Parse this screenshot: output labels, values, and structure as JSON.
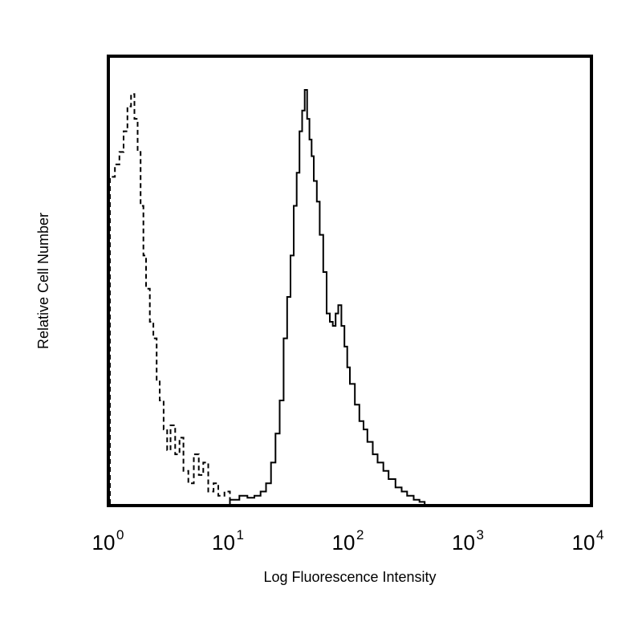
{
  "chart_data": {
    "type": "histogram",
    "title": "",
    "xlabel": "Log Fluorescence Intensity",
    "ylabel": "Relative Cell Number",
    "xscale": "log",
    "xlim": [
      1,
      10000
    ],
    "ylim": [
      0,
      1
    ],
    "grid": false,
    "legend": "none",
    "x_tick_labels": [
      {
        "base": "10",
        "exp": "0",
        "value": 1
      },
      {
        "base": "10",
        "exp": "1",
        "value": 10
      },
      {
        "base": "10",
        "exp": "2",
        "value": 100
      },
      {
        "base": "10",
        "exp": "3",
        "value": 1000
      },
      {
        "base": "10",
        "exp": "4",
        "value": 10000
      }
    ],
    "series": [
      {
        "style": "dashed",
        "color": "#000000",
        "x": [
          1.0,
          1.1,
          1.2,
          1.3,
          1.4,
          1.5,
          1.6,
          1.7,
          1.8,
          1.9,
          2.0,
          2.15,
          2.3,
          2.45,
          2.6,
          2.8,
          3.0,
          3.2,
          3.5,
          3.8,
          4.1,
          4.5,
          5.0,
          5.5,
          6.0,
          6.6,
          7.3,
          8.0,
          9.0,
          10.0
        ],
        "y": [
          0.79,
          0.82,
          0.85,
          0.9,
          0.96,
          0.99,
          0.93,
          0.85,
          0.72,
          0.6,
          0.52,
          0.44,
          0.4,
          0.3,
          0.25,
          0.18,
          0.13,
          0.19,
          0.12,
          0.16,
          0.08,
          0.05,
          0.12,
          0.07,
          0.1,
          0.03,
          0.05,
          0.02,
          0.03,
          0.01
        ]
      },
      {
        "style": "solid",
        "color": "#000000",
        "x": [
          10,
          12,
          14,
          16,
          18,
          20,
          22,
          24,
          26,
          28,
          30,
          32,
          34,
          36,
          38,
          40,
          42,
          44,
          46,
          48,
          50,
          53,
          56,
          60,
          64,
          68,
          72,
          76,
          80,
          85,
          90,
          95,
          100,
          110,
          120,
          130,
          140,
          155,
          170,
          190,
          210,
          240,
          270,
          300,
          340,
          380,
          420
        ],
        "y": [
          0.01,
          0.02,
          0.015,
          0.02,
          0.03,
          0.05,
          0.1,
          0.17,
          0.25,
          0.4,
          0.5,
          0.6,
          0.72,
          0.8,
          0.9,
          0.95,
          1.0,
          0.93,
          0.88,
          0.84,
          0.78,
          0.73,
          0.65,
          0.56,
          0.46,
          0.44,
          0.43,
          0.46,
          0.48,
          0.43,
          0.38,
          0.33,
          0.29,
          0.24,
          0.2,
          0.18,
          0.15,
          0.12,
          0.1,
          0.08,
          0.06,
          0.04,
          0.03,
          0.02,
          0.01,
          0.005,
          0.0
        ]
      }
    ]
  }
}
